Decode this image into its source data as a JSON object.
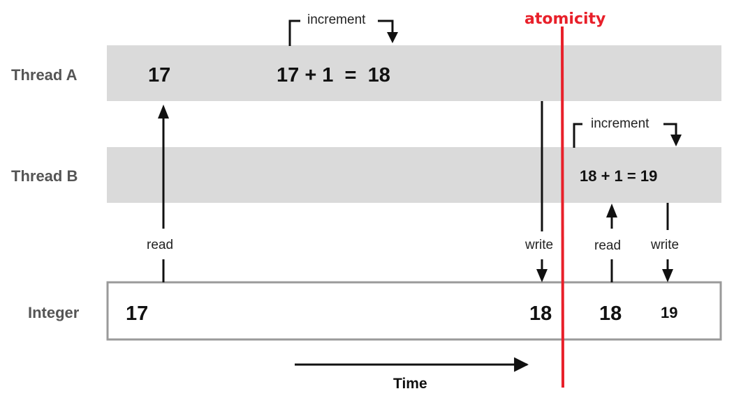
{
  "lanes": {
    "thread_a": "Thread A",
    "thread_b": "Thread B",
    "integer": "Integer"
  },
  "thread_a": {
    "read_value": "17",
    "expression": "17 + 1  =  18",
    "increment_label": "increment"
  },
  "thread_b": {
    "expression": "18 + 1 = 19",
    "increment_label": "increment"
  },
  "integer_values": [
    "17",
    "18",
    "18",
    "19"
  ],
  "arrow_labels": {
    "read_a": "read",
    "write_a": "write",
    "read_b": "read",
    "write_b": "write"
  },
  "atomicity": {
    "label": "atomicity",
    "color": "#e8202a"
  },
  "time_label": "Time",
  "colors": {
    "lane_fill": "#dadada",
    "integer_border": "#9a9a9a"
  }
}
